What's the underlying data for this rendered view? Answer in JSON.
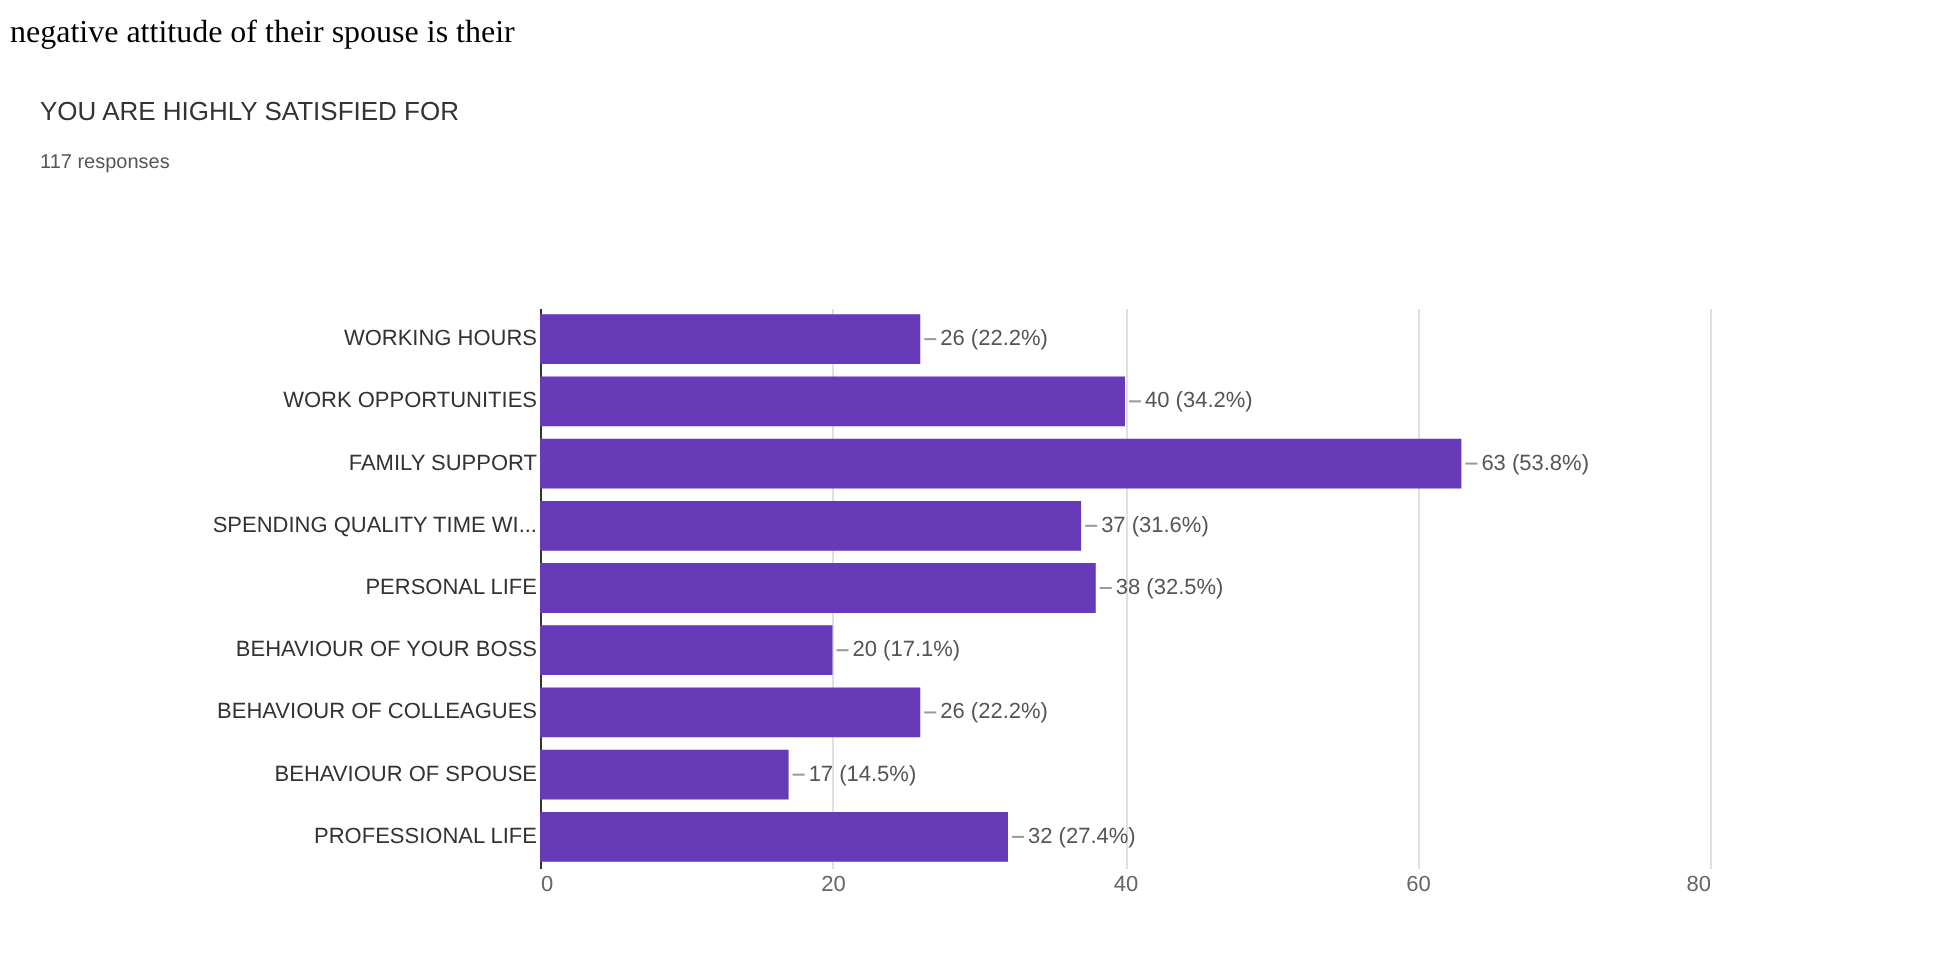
{
  "chart_data": {
    "type": "bar",
    "orientation": "horizontal",
    "title": "YOU ARE HIGHLY SATISFIED FOR",
    "subtitle": "117 responses",
    "annotations": [
      "negative attitude of their spouse is their"
    ],
    "categories": [
      "WORKING HOURS",
      "WORK OPPORTUNITIES",
      "FAMILY SUPPORT",
      "SPENDING QUALITY TIME WI...",
      "PERSONAL LIFE",
      "BEHAVIOUR OF YOUR BOSS",
      "BEHAVIOUR OF COLLEAGUES",
      "BEHAVIOUR OF SPOUSE",
      "PROFESSIONAL LIFE"
    ],
    "values": [
      26,
      40,
      63,
      37,
      38,
      20,
      26,
      17,
      32
    ],
    "value_labels": [
      "26 (22.2%)",
      "40 (34.2%)",
      "63 (53.8%)",
      "37 (31.6%)",
      "38 (32.5%)",
      "20 (17.1%)",
      "26 (22.2%)",
      "17 (14.5%)",
      "32 (27.4%)"
    ],
    "color": "#673ab7",
    "xlim": [
      0,
      80
    ],
    "xticks": [
      0,
      20,
      40,
      60,
      80
    ],
    "grid": "x",
    "legend": false
  }
}
